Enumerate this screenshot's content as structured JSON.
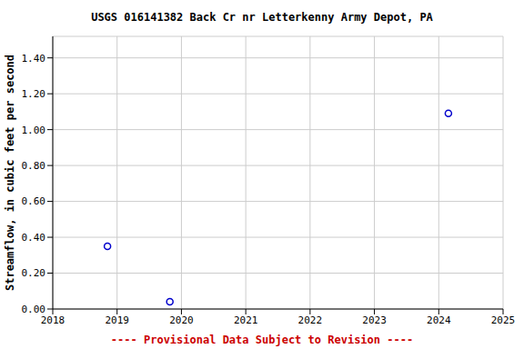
{
  "chart_data": {
    "type": "scatter",
    "title": "USGS 016141382 Back Cr nr Letterkenny Army Depot, PA",
    "y_label": "Streamflow, in cubic feet per second",
    "annotation": "---- Provisional Data Subject to Revision ----",
    "x": [
      2018.85,
      2019.82,
      2024.15
    ],
    "values": [
      0.35,
      0.04,
      1.09
    ],
    "color": "#0000cc",
    "marker": "circle",
    "xlim": [
      2018,
      2025
    ],
    "xticks": [
      2018,
      2019,
      2020,
      2021,
      2022,
      2023,
      2024,
      2025
    ],
    "ylim": [
      0,
      1.52
    ],
    "yticks": [
      {
        "value": 0,
        "label": "0.00"
      },
      {
        "value": 0.2,
        "label": "0.20"
      },
      {
        "value": 0.4,
        "label": "0.40"
      },
      {
        "value": 0.6,
        "label": "0.60"
      },
      {
        "value": 0.8,
        "label": "0.80"
      },
      {
        "value": 1.0,
        "label": "1.00"
      },
      {
        "value": 1.2,
        "label": "1.20"
      },
      {
        "value": 1.4,
        "label": "1.40"
      }
    ],
    "grid": true
  }
}
